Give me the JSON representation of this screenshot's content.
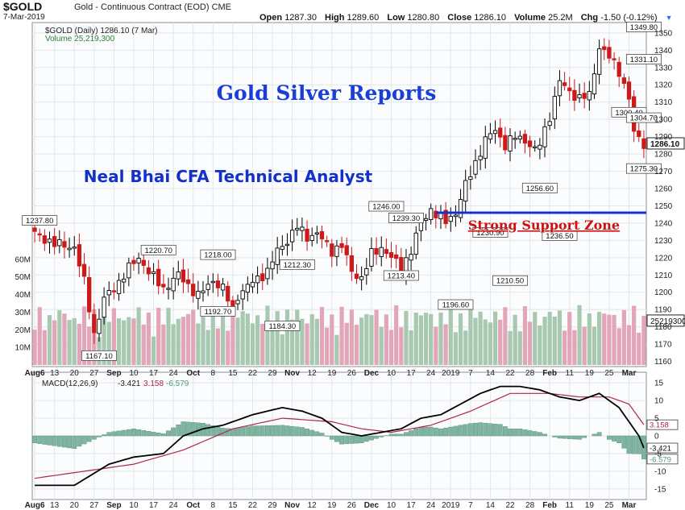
{
  "header": {
    "symbol": "$GOLD",
    "description": "Gold - Continuous Contract (EOD)",
    "exchange": "CME",
    "date": "7-Mar-2019",
    "open_label": "Open",
    "open": "1287.30",
    "high_label": "High",
    "high": "1289.60",
    "low_label": "Low",
    "low": "1280.80",
    "close_label": "Close",
    "close": "1286.10",
    "volume_label": "Volume",
    "volume": "25.2M",
    "chg_label": "Chg",
    "chg": "-1.50 (-0.12%)",
    "dropdown_icon": "triangle-down-icon"
  },
  "legend": {
    "price": "$GOLD (Daily) 1286.10 (7 Mar)",
    "volume": "Volume 25,219,300",
    "macd_prefix": "MACD(12,26,9)",
    "macd_value": "-3.421",
    "signal_value": "3.158",
    "hist_value": "-6.579"
  },
  "annotations": {
    "title": "Gold Silver Reports",
    "subtitle": "Neal Bhai CFA Technical Analyst",
    "support": "Strong Support Zone"
  },
  "colors": {
    "up": "#000000",
    "down": "#cc1a1a",
    "vol_up": "#a8c9b0",
    "vol_down": "#e2a6b8",
    "title": "#1b3fd6",
    "subtitle": "#1331c9",
    "support_line": "#1434c7",
    "support_text": "#d01111",
    "macd_line": "#000000",
    "signal_line": "#b0264a",
    "hist": "#7fb5a0",
    "grid": "#e3e6ea"
  },
  "chart_data": [
    {
      "type": "candlestick",
      "title": "$GOLD (Daily) 1286.10 (7 Mar)",
      "ylim": [
        1157,
        1356
      ],
      "y_ticks": [
        1160,
        1170,
        1180,
        1190,
        1200,
        1210,
        1220,
        1230,
        1240,
        1250,
        1260,
        1270,
        1280,
        1290,
        1300,
        1310,
        1320,
        1330,
        1340,
        1350
      ],
      "x_ticks": [
        "Aug6",
        "13",
        "20",
        "27",
        "Sep",
        "10",
        "17",
        "24",
        "Oct",
        "8",
        "15",
        "22",
        "29",
        "Nov",
        "12",
        "19",
        "26",
        "Dec",
        "10",
        "17",
        "24",
        "2019",
        "7",
        "14",
        "22",
        "28",
        "Feb",
        "11",
        "19",
        "25",
        "Mar"
      ],
      "price_labels": [
        "1237.80",
        "1167.10",
        "1220.70",
        "1218.00",
        "1192.70",
        "1212.30",
        "1184.30",
        "1246.00",
        "1239.30",
        "1213.40",
        "1196.60",
        "1230.90",
        "1210.50",
        "1256.60",
        "1236.50",
        "1300.40",
        "1275.30",
        "1331.10",
        "1349.80",
        "1304.70"
      ],
      "last_price": "1286.10",
      "close_keyframes": [
        [
          0,
          1234
        ],
        [
          4,
          1228
        ],
        [
          8,
          1226
        ],
        [
          10,
          1206
        ],
        [
          12,
          1176
        ],
        [
          14,
          1196
        ],
        [
          17,
          1206
        ],
        [
          19,
          1214
        ],
        [
          21,
          1220
        ],
        [
          23,
          1212
        ],
        [
          26,
          1202
        ],
        [
          29,
          1210
        ],
        [
          33,
          1198
        ],
        [
          36,
          1207
        ],
        [
          38,
          1202
        ],
        [
          40,
          1190
        ],
        [
          41,
          1198
        ],
        [
          44,
          1206
        ],
        [
          47,
          1212
        ],
        [
          49,
          1224
        ],
        [
          51,
          1230
        ],
        [
          53,
          1238
        ],
        [
          55,
          1232
        ],
        [
          57,
          1234
        ],
        [
          60,
          1224
        ],
        [
          62,
          1227
        ],
        [
          64,
          1212
        ],
        [
          66,
          1208
        ],
        [
          68,
          1222
        ],
        [
          70,
          1226
        ],
        [
          72,
          1220
        ],
        [
          74,
          1214
        ],
        [
          76,
          1224
        ],
        [
          78,
          1240
        ],
        [
          80,
          1248
        ],
        [
          81,
          1245
        ],
        [
          83,
          1241
        ],
        [
          85,
          1246
        ],
        [
          87,
          1262
        ],
        [
          89,
          1275
        ],
        [
          91,
          1288
        ],
        [
          93,
          1294
        ],
        [
          95,
          1285
        ],
        [
          97,
          1290
        ],
        [
          99,
          1288
        ],
        [
          101,
          1282
        ],
        [
          102,
          1286
        ],
        [
          104,
          1302
        ],
        [
          106,
          1322
        ],
        [
          108,
          1316
        ],
        [
          110,
          1312
        ],
        [
          112,
          1314
        ],
        [
          114,
          1342
        ],
        [
          116,
          1336
        ],
        [
          118,
          1328
        ],
        [
          120,
          1312
        ],
        [
          121,
          1292
        ],
        [
          123,
          1286
        ]
      ],
      "volume_ylim": [
        0,
        70
      ],
      "volume_ticks": [
        "10M",
        "20M",
        "30M",
        "40M",
        "50M",
        "60M"
      ],
      "volume_last": "25219300",
      "support_level": 1246
    },
    {
      "type": "line",
      "title": "MACD(12,26,9)",
      "ylim": [
        -18,
        18
      ],
      "y_ticks": [
        -15,
        -10,
        -5,
        0,
        5,
        10,
        15
      ],
      "series": [
        {
          "name": "MACD",
          "keyframes": [
            [
              0,
              -14
            ],
            [
              8,
              -14
            ],
            [
              15,
              -8
            ],
            [
              20,
              -6
            ],
            [
              26,
              -5
            ],
            [
              30,
              0
            ],
            [
              34,
              2
            ],
            [
              38,
              3
            ],
            [
              44,
              6
            ],
            [
              50,
              8
            ],
            [
              54,
              7
            ],
            [
              58,
              5
            ],
            [
              62,
              1
            ],
            [
              66,
              0
            ],
            [
              70,
              1
            ],
            [
              74,
              2
            ],
            [
              78,
              5
            ],
            [
              82,
              6
            ],
            [
              86,
              9
            ],
            [
              90,
              12
            ],
            [
              94,
              14
            ],
            [
              98,
              14
            ],
            [
              102,
              13
            ],
            [
              106,
              11
            ],
            [
              110,
              10
            ],
            [
              114,
              12
            ],
            [
              116,
              10
            ],
            [
              118,
              8
            ],
            [
              120,
              4
            ],
            [
              122,
              0
            ],
            [
              123,
              -3.421
            ]
          ]
        },
        {
          "name": "Signal",
          "keyframes": [
            [
              0,
              -12
            ],
            [
              10,
              -10
            ],
            [
              20,
              -8
            ],
            [
              30,
              -4
            ],
            [
              40,
              2
            ],
            [
              50,
              5
            ],
            [
              60,
              4
            ],
            [
              66,
              2
            ],
            [
              72,
              1
            ],
            [
              80,
              3
            ],
            [
              88,
              7
            ],
            [
              96,
              12
            ],
            [
              104,
              12
            ],
            [
              110,
              11
            ],
            [
              116,
              11
            ],
            [
              120,
              9
            ],
            [
              123,
              3.158
            ]
          ]
        }
      ],
      "labels": [
        "-3.421",
        "3.158",
        "-6.579"
      ]
    }
  ]
}
